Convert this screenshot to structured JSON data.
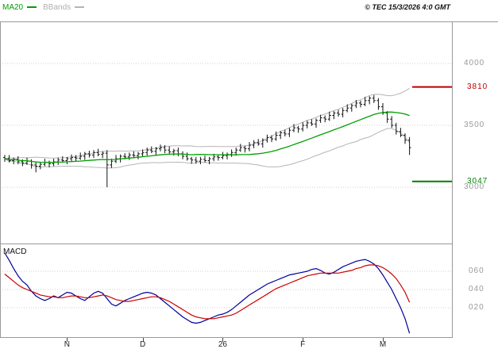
{
  "header": {
    "legend_ma": "MA20",
    "legend_bbands": "BBands",
    "copyright": "© TEC 15/3/2026 4:0 GMT"
  },
  "colors": {
    "ma20": "#00a000",
    "bbands": "#b5b5b5",
    "candle": "#111111",
    "grid": "#cfcfcf",
    "frame": "#999999",
    "resistance": "#bb0000",
    "support": "#008000",
    "macd_line": "#000099",
    "macd_signal": "#cc0000",
    "axis_text": "#999999",
    "month_text": "#222222"
  },
  "chart_data": [
    {
      "type": "candlestick",
      "pane": "price",
      "title": "",
      "ylim": [
        2540,
        4330
      ],
      "overlays": {
        "ma_period": 20,
        "bb_period": 20,
        "bb_mult": 2
      },
      "y_ticks": [
        {
          "label": "4000",
          "value": 4000
        },
        {
          "label": "3500",
          "value": 3500
        },
        {
          "label": "3000",
          "value": 3000
        }
      ],
      "levels": [
        {
          "label": "3810",
          "value": 3810,
          "color_key": "resistance"
        },
        {
          "label": "3047",
          "value": 3047,
          "color_key": "support"
        }
      ],
      "x_ticks": [
        {
          "label": "N",
          "index": 14
        },
        {
          "label": "D",
          "index": 31
        },
        {
          "label": "26",
          "index": 49
        },
        {
          "label": "F",
          "index": 67
        },
        {
          "label": "M",
          "index": 85
        }
      ],
      "candles": [
        [
          3240,
          3260,
          3205,
          3230
        ],
        [
          3230,
          3260,
          3200,
          3215
        ],
        [
          3215,
          3240,
          3185,
          3225
        ],
        [
          3225,
          3250,
          3185,
          3205
        ],
        [
          3205,
          3225,
          3170,
          3195
        ],
        [
          3195,
          3240,
          3180,
          3210
        ],
        [
          3210,
          3225,
          3150,
          3180
        ],
        [
          3180,
          3205,
          3120,
          3170
        ],
        [
          3170,
          3205,
          3145,
          3185
        ],
        [
          3185,
          3230,
          3170,
          3200
        ],
        [
          3200,
          3215,
          3160,
          3190
        ],
        [
          3190,
          3230,
          3170,
          3205
        ],
        [
          3205,
          3240,
          3180,
          3220
        ],
        [
          3220,
          3250,
          3200,
          3215
        ],
        [
          3215,
          3245,
          3185,
          3230
        ],
        [
          3230,
          3265,
          3210,
          3240
        ],
        [
          3240,
          3260,
          3210,
          3235
        ],
        [
          3235,
          3280,
          3220,
          3250
        ],
        [
          3250,
          3285,
          3220,
          3270
        ],
        [
          3270,
          3295,
          3240,
          3260
        ],
        [
          3260,
          3300,
          3235,
          3280
        ],
        [
          3280,
          3310,
          3250,
          3265
        ],
        [
          3265,
          3290,
          3235,
          3275
        ],
        [
          3275,
          3300,
          3000,
          3180
        ],
        [
          3180,
          3230,
          3155,
          3210
        ],
        [
          3210,
          3260,
          3195,
          3230
        ],
        [
          3230,
          3265,
          3200,
          3250
        ],
        [
          3250,
          3275,
          3225,
          3245
        ],
        [
          3245,
          3280,
          3220,
          3260
        ],
        [
          3260,
          3290,
          3240,
          3255
        ],
        [
          3255,
          3285,
          3225,
          3270
        ],
        [
          3270,
          3305,
          3250,
          3280
        ],
        [
          3280,
          3320,
          3255,
          3300
        ],
        [
          3300,
          3330,
          3275,
          3290
        ],
        [
          3290,
          3325,
          3260,
          3310
        ],
        [
          3310,
          3345,
          3290,
          3320
        ],
        [
          3320,
          3340,
          3275,
          3300
        ],
        [
          3300,
          3330,
          3270,
          3285
        ],
        [
          3285,
          3310,
          3255,
          3295
        ],
        [
          3295,
          3320,
          3250,
          3270
        ],
        [
          3270,
          3290,
          3225,
          3250
        ],
        [
          3250,
          3280,
          3215,
          3230
        ],
        [
          3230,
          3245,
          3190,
          3220
        ],
        [
          3220,
          3245,
          3190,
          3210
        ],
        [
          3210,
          3245,
          3185,
          3225
        ],
        [
          3225,
          3255,
          3200,
          3215
        ],
        [
          3215,
          3245,
          3185,
          3230
        ],
        [
          3230,
          3270,
          3210,
          3245
        ],
        [
          3245,
          3265,
          3215,
          3240
        ],
        [
          3240,
          3285,
          3225,
          3255
        ],
        [
          3255,
          3280,
          3225,
          3265
        ],
        [
          3265,
          3305,
          3245,
          3280
        ],
        [
          3280,
          3320,
          3255,
          3300
        ],
        [
          3300,
          3350,
          3285,
          3320
        ],
        [
          3320,
          3335,
          3280,
          3310
        ],
        [
          3310,
          3365,
          3290,
          3340
        ],
        [
          3340,
          3380,
          3315,
          3360
        ],
        [
          3360,
          3390,
          3335,
          3350
        ],
        [
          3350,
          3395,
          3320,
          3380
        ],
        [
          3380,
          3425,
          3360,
          3400
        ],
        [
          3400,
          3420,
          3365,
          3390
        ],
        [
          3390,
          3450,
          3375,
          3420
        ],
        [
          3420,
          3455,
          3390,
          3440
        ],
        [
          3440,
          3465,
          3410,
          3430
        ],
        [
          3430,
          3480,
          3405,
          3460
        ],
        [
          3460,
          3510,
          3445,
          3480
        ],
        [
          3480,
          3495,
          3440,
          3470
        ],
        [
          3470,
          3525,
          3450,
          3500
        ],
        [
          3500,
          3540,
          3475,
          3520
        ],
        [
          3520,
          3550,
          3495,
          3510
        ],
        [
          3510,
          3555,
          3480,
          3540
        ],
        [
          3540,
          3585,
          3520,
          3560
        ],
        [
          3560,
          3580,
          3525,
          3550
        ],
        [
          3550,
          3610,
          3535,
          3580
        ],
        [
          3580,
          3615,
          3550,
          3600
        ],
        [
          3600,
          3625,
          3570,
          3590
        ],
        [
          3590,
          3640,
          3565,
          3620
        ],
        [
          3620,
          3670,
          3605,
          3640
        ],
        [
          3640,
          3675,
          3610,
          3660
        ],
        [
          3660,
          3705,
          3640,
          3680
        ],
        [
          3680,
          3700,
          3645,
          3670
        ],
        [
          3670,
          3730,
          3655,
          3700
        ],
        [
          3700,
          3735,
          3670,
          3720
        ],
        [
          3720,
          3745,
          3680,
          3700
        ],
        [
          3700,
          3720,
          3625,
          3650
        ],
        [
          3650,
          3680,
          3585,
          3600
        ],
        [
          3600,
          3615,
          3520,
          3550
        ],
        [
          3550,
          3575,
          3480,
          3500
        ],
        [
          3500,
          3520,
          3425,
          3450
        ],
        [
          3450,
          3480,
          3405,
          3420
        ],
        [
          3420,
          3435,
          3350,
          3380
        ],
        [
          3380,
          3405,
          3260,
          3320
        ]
      ]
    },
    {
      "type": "line",
      "pane": "macd",
      "label": "MACD",
      "ylim": [
        -10,
        90
      ],
      "y_ticks": [
        {
          "label": "060",
          "value": 60
        },
        {
          "label": "040",
          "value": 40
        },
        {
          "label": "020",
          "value": 20
        }
      ],
      "series": [
        {
          "name": "macd",
          "color_key": "macd_line",
          "values": [
            80,
            72,
            63,
            55,
            49,
            45,
            38,
            33,
            30,
            28,
            30,
            33,
            31,
            34,
            37,
            36,
            33,
            30,
            28,
            32,
            36,
            38,
            36,
            30,
            24,
            22,
            25,
            28,
            30,
            32,
            34,
            36,
            37,
            36,
            34,
            30,
            26,
            22,
            18,
            14,
            10,
            7,
            4,
            3,
            4,
            6,
            8,
            10,
            12,
            13,
            15,
            18,
            22,
            26,
            30,
            34,
            37,
            40,
            43,
            46,
            48,
            50,
            52,
            54,
            56,
            57,
            58,
            59,
            60,
            62,
            63,
            61,
            58,
            57,
            59,
            62,
            65,
            67,
            69,
            71,
            72,
            73,
            71,
            68,
            63,
            56,
            48,
            40,
            30,
            20,
            8,
            -8
          ]
        },
        {
          "name": "signal",
          "color_key": "macd_signal",
          "values": [
            57,
            53,
            49,
            45,
            42,
            40,
            38,
            36,
            34,
            33,
            32,
            32,
            31,
            31,
            32,
            33,
            33,
            32,
            31,
            31,
            32,
            33,
            34,
            33,
            31,
            29,
            28,
            27,
            27,
            28,
            29,
            30,
            31,
            32,
            32,
            31,
            29,
            27,
            24,
            21,
            18,
            15,
            12,
            10,
            9,
            8,
            8,
            8,
            9,
            10,
            11,
            12,
            14,
            17,
            20,
            23,
            26,
            29,
            32,
            35,
            38,
            41,
            43,
            45,
            47,
            49,
            51,
            53,
            55,
            56,
            57,
            58,
            58,
            58,
            58,
            58,
            59,
            60,
            61,
            63,
            64,
            66,
            67,
            67,
            66,
            64,
            61,
            57,
            52,
            45,
            37,
            26
          ]
        }
      ]
    }
  ]
}
